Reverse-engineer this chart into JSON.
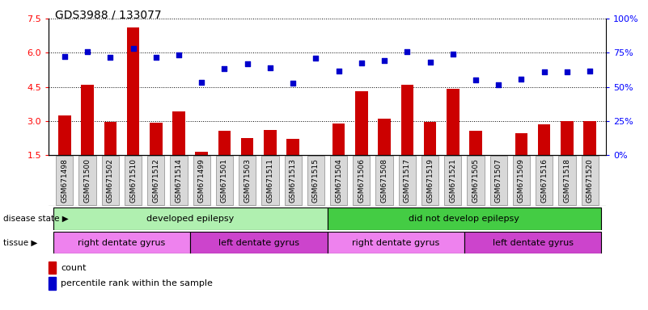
{
  "title": "GDS3988 / 133077",
  "samples": [
    "GSM671498",
    "GSM671500",
    "GSM671502",
    "GSM671510",
    "GSM671512",
    "GSM671514",
    "GSM671499",
    "GSM671501",
    "GSM671503",
    "GSM671511",
    "GSM671513",
    "GSM671515",
    "GSM671504",
    "GSM671506",
    "GSM671508",
    "GSM671517",
    "GSM671519",
    "GSM671521",
    "GSM671505",
    "GSM671507",
    "GSM671509",
    "GSM671516",
    "GSM671518",
    "GSM671520"
  ],
  "counts": [
    3.25,
    4.6,
    2.95,
    7.1,
    2.92,
    3.4,
    1.65,
    2.55,
    2.25,
    2.6,
    2.2,
    1.5,
    2.9,
    4.3,
    3.1,
    4.6,
    2.95,
    4.4,
    2.55,
    1.5,
    2.45,
    2.85,
    3.0,
    3.0
  ],
  "percentiles": [
    5.85,
    6.05,
    5.8,
    6.2,
    5.8,
    5.9,
    4.7,
    5.3,
    5.5,
    5.35,
    4.65,
    5.75,
    5.2,
    5.55,
    5.65,
    6.05,
    5.6,
    5.95,
    4.8,
    4.6,
    4.85,
    5.15,
    5.15,
    5.2
  ],
  "ylim_left": [
    1.5,
    7.5
  ],
  "yticks_left": [
    1.5,
    3.0,
    4.5,
    6.0,
    7.5
  ],
  "ylim_right": [
    0,
    100
  ],
  "yticks_right": [
    0,
    25,
    50,
    75,
    100
  ],
  "bar_color": "#cc0000",
  "dot_color": "#0000cc",
  "disease_state_groups": [
    {
      "label": "developed epilepsy",
      "start": 0,
      "end": 12,
      "color": "#b0f0b0"
    },
    {
      "label": "did not develop epilepsy",
      "start": 12,
      "end": 24,
      "color": "#44cc44"
    }
  ],
  "tissue_groups": [
    {
      "label": "right dentate gyrus",
      "start": 0,
      "end": 6,
      "color": "#ee82ee"
    },
    {
      "label": "left dentate gyrus",
      "start": 6,
      "end": 12,
      "color": "#cc44cc"
    },
    {
      "label": "right dentate gyrus",
      "start": 12,
      "end": 18,
      "color": "#ee82ee"
    },
    {
      "label": "left dentate gyrus",
      "start": 18,
      "end": 24,
      "color": "#cc44cc"
    }
  ],
  "count_label": "count",
  "percentile_label": "percentile rank within the sample",
  "disease_state_label": "disease state",
  "tissue_label": "tissue",
  "bar_width": 0.55
}
